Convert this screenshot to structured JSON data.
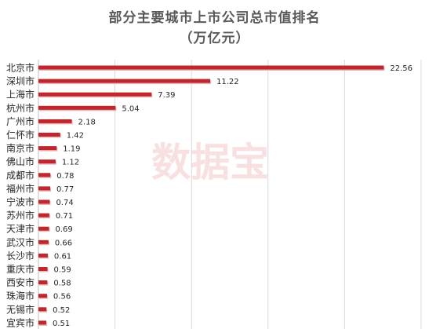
{
  "chart_data": {
    "type": "bar",
    "orientation": "horizontal",
    "title": "部分主要城市上市公司总市值排名",
    "subtitle": "（万亿元）",
    "categories": [
      "北京市",
      "深圳市",
      "上海市",
      "杭州市",
      "广州市",
      "仁怀市",
      "南京市",
      "佛山市",
      "成都市",
      "福州市",
      "宁波市",
      "苏州市",
      "天津市",
      "武汉市",
      "长沙市",
      "重庆市",
      "西安市",
      "珠海市",
      "无锡市",
      "宜宾市"
    ],
    "values": [
      22.56,
      11.22,
      7.39,
      5.04,
      2.18,
      1.42,
      1.19,
      1.12,
      0.78,
      0.77,
      0.74,
      0.71,
      0.69,
      0.66,
      0.61,
      0.59,
      0.58,
      0.56,
      0.52,
      0.51
    ],
    "data_labels": [
      "22.56",
      "11.22",
      "7.39",
      "5.04",
      "2.18",
      "1.42",
      "1.19",
      "1.12",
      "0.78",
      "0.77",
      "0.74",
      "0.71",
      "0.69",
      "0.66",
      "0.61",
      "0.59",
      "0.58",
      "0.56",
      "0.52",
      "0.51"
    ],
    "xlim": [
      0,
      25
    ],
    "xlabel": "",
    "ylabel": "",
    "grid": "vertical",
    "legend": "none",
    "bar_color": "#c0272d",
    "bar_shadow_color": "#e8b4b6"
  },
  "watermark": "数据宝"
}
